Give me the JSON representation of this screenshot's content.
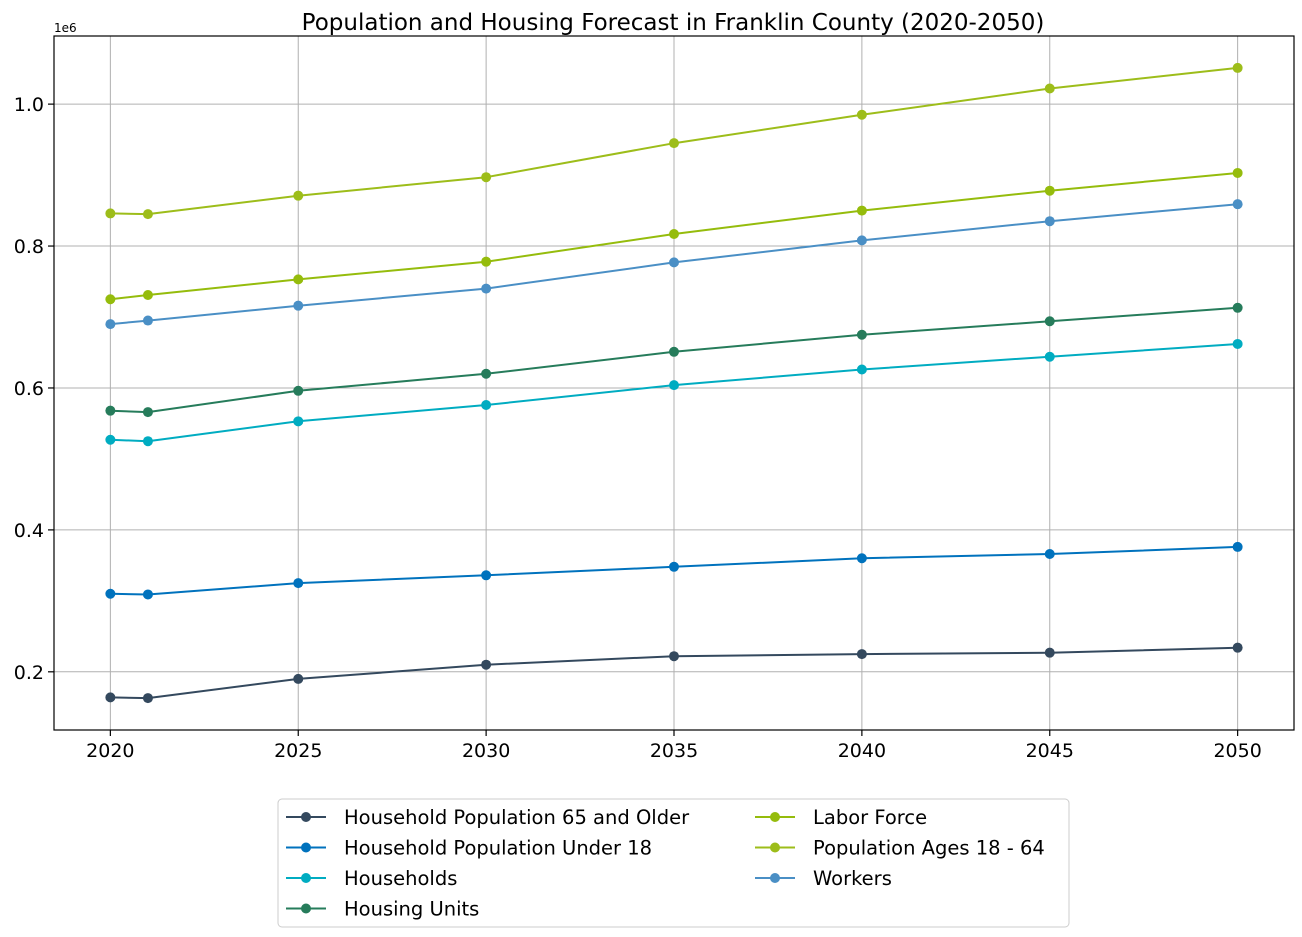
{
  "chart_data": {
    "type": "line",
    "title": "Population and Housing Forecast in Franklin County (2020-2050)",
    "xlabel": "",
    "ylabel": "",
    "y_offset_label": "1e6",
    "x": [
      2020,
      2021,
      2025,
      2030,
      2035,
      2040,
      2045,
      2050
    ],
    "xlim": [
      2018.5,
      2051.5
    ],
    "ylim": [
      0.118,
      1.096
    ],
    "xticks": [
      2020,
      2025,
      2030,
      2035,
      2040,
      2045,
      2050
    ],
    "xtick_labels": [
      "2020",
      "2025",
      "2030",
      "2035",
      "2040",
      "2045",
      "2050"
    ],
    "yticks": [
      0.2,
      0.4,
      0.6,
      0.8,
      1.0
    ],
    "ytick_labels": [
      "0.2",
      "0.4",
      "0.6",
      "0.8",
      "1.0"
    ],
    "grid": true,
    "legend_position": "bottom-center",
    "series": [
      {
        "name": "Household Population 65 and Older",
        "color": "#34495e",
        "values": [
          0.164,
          0.163,
          0.19,
          0.21,
          0.222,
          0.225,
          0.227,
          0.234
        ]
      },
      {
        "name": "Household Population Under 18",
        "color": "#0072bd",
        "values": [
          0.31,
          0.309,
          0.325,
          0.336,
          0.348,
          0.36,
          0.366,
          0.376
        ]
      },
      {
        "name": "Households",
        "color": "#00acc1",
        "values": [
          0.527,
          0.525,
          0.553,
          0.576,
          0.604,
          0.626,
          0.644,
          0.662
        ]
      },
      {
        "name": "Housing Units",
        "color": "#267c5b",
        "values": [
          0.568,
          0.566,
          0.596,
          0.62,
          0.651,
          0.675,
          0.694,
          0.713
        ]
      },
      {
        "name": "Labor Force",
        "color": "#95bc0c",
        "values": [
          0.725,
          0.731,
          0.753,
          0.778,
          0.817,
          0.85,
          0.878,
          0.903
        ]
      },
      {
        "name": "Population Ages 18 - 64",
        "color": "#9dbd1a",
        "values": [
          0.846,
          0.845,
          0.871,
          0.897,
          0.945,
          0.985,
          1.022,
          1.051
        ]
      },
      {
        "name": "Workers",
        "color": "#4a8fc5",
        "values": [
          0.69,
          0.695,
          0.716,
          0.74,
          0.777,
          0.808,
          0.835,
          0.859
        ]
      }
    ]
  }
}
